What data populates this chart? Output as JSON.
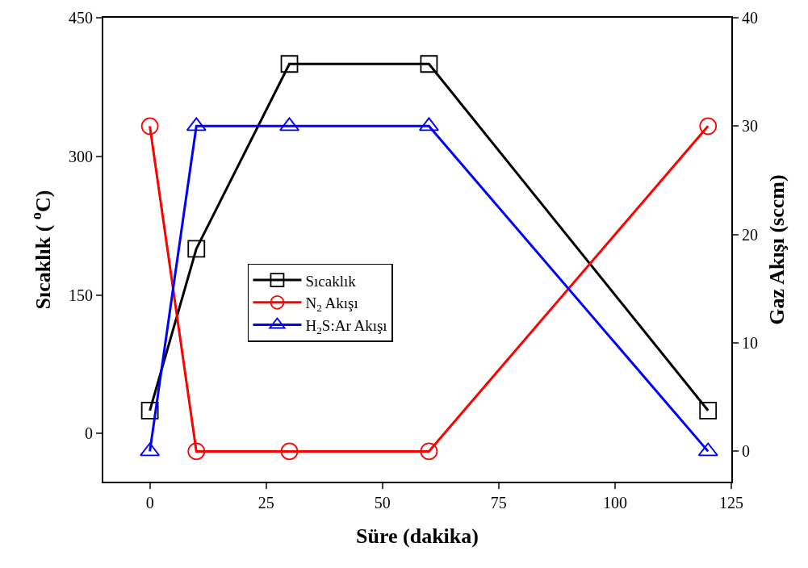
{
  "chart_data": {
    "type": "line",
    "xlabel": "Süre (dakika)",
    "ylabel": "Sıcaklık ( $^{o}$C)",
    "y2label": "Gaz Akışı (sccm)",
    "x": [
      0,
      10,
      30,
      60,
      120
    ],
    "series": [
      {
        "name": "Sıcaklık",
        "color": "#000000",
        "marker": "square",
        "values": [
          25,
          200,
          400,
          400,
          25
        ]
      },
      {
        "name": "N$_{2}$ Akışı",
        "color": "#ff0000",
        "marker": "circle",
        "axis": "y2",
        "values": [
          30,
          0,
          0,
          0,
          30
        ]
      },
      {
        "name": "H$_{2}$S:Ar Akışı",
        "color": "#0000ff",
        "marker": "triangle",
        "axis": "y2",
        "values": [
          0,
          30,
          30,
          30,
          0
        ]
      }
    ],
    "xlim": [
      -10,
      125
    ],
    "xticks": [
      0,
      25,
      50,
      75,
      100,
      125
    ],
    "ylim": [
      -52,
      450
    ],
    "yticks": [
      0,
      150,
      300,
      450
    ],
    "y2lim": [
      -2.8,
      40
    ],
    "y2ticks": [
      0,
      10,
      20,
      30,
      40
    ],
    "legend": "center left",
    "line_style": "solid"
  }
}
